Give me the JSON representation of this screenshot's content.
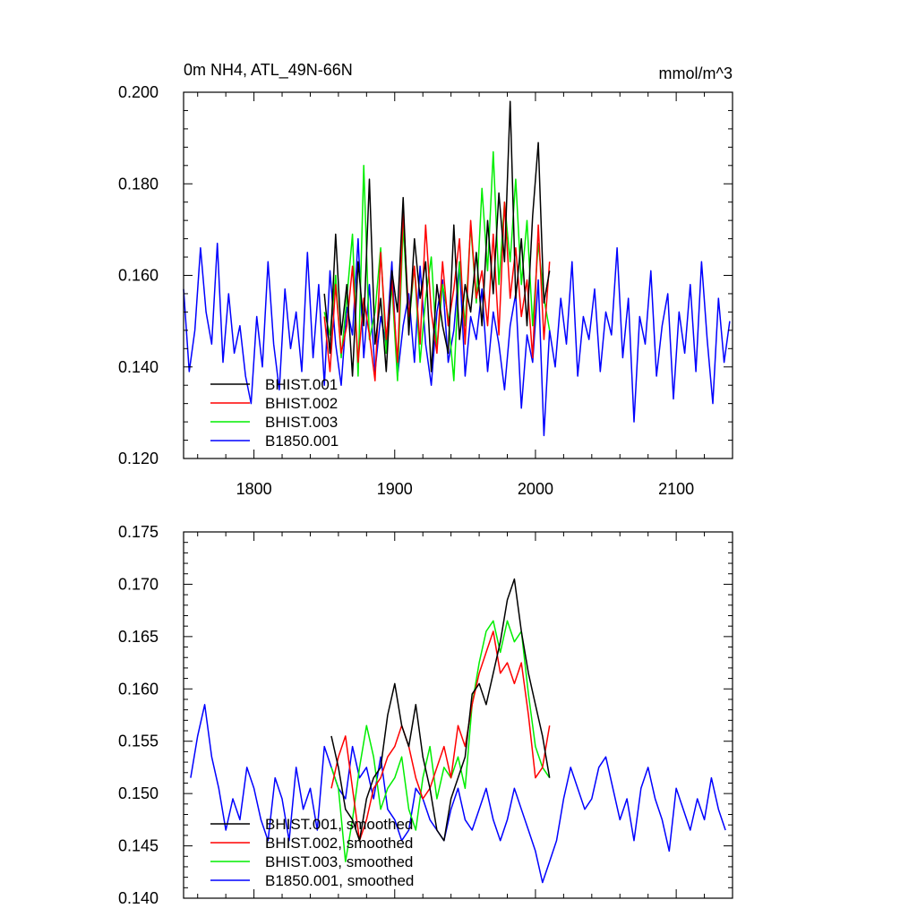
{
  "colors": {
    "BHIST.001": "#000000",
    "BHIST.002": "#ff0000",
    "BHIST.003": "#00ee00",
    "B1850.001": "#0000ff"
  },
  "chart_data": [
    {
      "type": "line",
      "title_left": "0m NH4, ATL_49N-66N",
      "title_right": "mmol/m^3",
      "xlim": [
        1750,
        2140
      ],
      "ylim": [
        0.12,
        0.2
      ],
      "y_ticks": [
        0.12,
        0.14,
        0.16,
        0.18,
        0.2
      ],
      "y_tick_labels": [
        "0.120",
        "0.140",
        "0.160",
        "0.180",
        "0.200"
      ],
      "x_ticks": [
        1800,
        1900,
        2000,
        2100
      ],
      "x_tick_labels": [
        "1800",
        "1900",
        "2000",
        "2100"
      ],
      "legend": [
        "BHIST.001",
        "BHIST.002",
        "BHIST.003",
        "B1850.001"
      ],
      "legend_position": "bottom-left",
      "series": [
        {
          "name": "B1850.001",
          "x": [
            1750,
            1754,
            1758,
            1762,
            1766,
            1770,
            1774,
            1778,
            1782,
            1786,
            1790,
            1794,
            1798,
            1802,
            1806,
            1810,
            1814,
            1818,
            1822,
            1826,
            1830,
            1834,
            1838,
            1842,
            1846,
            1850,
            1854,
            1858,
            1862,
            1866,
            1870,
            1874,
            1878,
            1882,
            1886,
            1890,
            1894,
            1898,
            1902,
            1906,
            1910,
            1914,
            1918,
            1922,
            1926,
            1930,
            1934,
            1938,
            1942,
            1946,
            1950,
            1954,
            1958,
            1962,
            1966,
            1970,
            1974,
            1978,
            1982,
            1986,
            1990,
            1994,
            1998,
            2002,
            2006,
            2010,
            2014,
            2018,
            2022,
            2026,
            2030,
            2034,
            2038,
            2042,
            2046,
            2050,
            2054,
            2058,
            2062,
            2066,
            2070,
            2074,
            2078,
            2082,
            2086,
            2090,
            2094,
            2098,
            2102,
            2106,
            2110,
            2114,
            2118,
            2122,
            2126,
            2130,
            2134,
            2138
          ],
          "y": [
            0.157,
            0.139,
            0.148,
            0.166,
            0.152,
            0.145,
            0.167,
            0.141,
            0.156,
            0.143,
            0.149,
            0.138,
            0.132,
            0.151,
            0.14,
            0.163,
            0.145,
            0.135,
            0.157,
            0.144,
            0.152,
            0.139,
            0.165,
            0.142,
            0.158,
            0.136,
            0.161,
            0.145,
            0.136,
            0.153,
            0.147,
            0.168,
            0.142,
            0.158,
            0.139,
            0.151,
            0.145,
            0.163,
            0.138,
            0.149,
            0.156,
            0.141,
            0.162,
            0.145,
            0.136,
            0.152,
            0.159,
            0.141,
            0.148,
            0.163,
            0.138,
            0.151,
            0.146,
            0.157,
            0.139,
            0.152,
            0.145,
            0.135,
            0.149,
            0.156,
            0.131,
            0.147,
            0.141,
            0.159,
            0.125,
            0.148,
            0.14,
            0.155,
            0.145,
            0.163,
            0.138,
            0.151,
            0.146,
            0.157,
            0.139,
            0.152,
            0.147,
            0.166,
            0.142,
            0.155,
            0.128,
            0.151,
            0.145,
            0.161,
            0.138,
            0.149,
            0.156,
            0.133,
            0.152,
            0.143,
            0.158,
            0.139,
            0.163,
            0.146,
            0.132,
            0.155,
            0.141,
            0.15
          ]
        },
        {
          "name": "BHIST.003",
          "x": [
            1850,
            1854,
            1858,
            1862,
            1866,
            1870,
            1874,
            1878,
            1882,
            1886,
            1890,
            1894,
            1898,
            1902,
            1906,
            1910,
            1914,
            1918,
            1922,
            1926,
            1930,
            1934,
            1938,
            1942,
            1946,
            1950,
            1954,
            1958,
            1962,
            1966,
            1970,
            1974,
            1978,
            1982,
            1986,
            1990,
            1994,
            1998,
            2002,
            2006,
            2010
          ],
          "y": [
            0.152,
            0.147,
            0.16,
            0.142,
            0.155,
            0.169,
            0.138,
            0.184,
            0.146,
            0.152,
            0.166,
            0.143,
            0.158,
            0.137,
            0.171,
            0.149,
            0.162,
            0.141,
            0.155,
            0.164,
            0.144,
            0.158,
            0.151,
            0.137,
            0.163,
            0.149,
            0.171,
            0.154,
            0.179,
            0.161,
            0.187,
            0.158,
            0.176,
            0.163,
            0.181,
            0.158,
            0.172,
            0.149,
            0.167,
            0.155,
            0.148
          ]
        },
        {
          "name": "BHIST.002",
          "x": [
            1850,
            1854,
            1858,
            1862,
            1866,
            1870,
            1874,
            1878,
            1882,
            1886,
            1890,
            1894,
            1898,
            1902,
            1906,
            1910,
            1914,
            1918,
            1922,
            1926,
            1930,
            1934,
            1938,
            1942,
            1946,
            1950,
            1954,
            1958,
            1962,
            1966,
            1970,
            1974,
            1978,
            1982,
            1986,
            1990,
            1994,
            1998,
            2002,
            2006,
            2010
          ],
          "y": [
            0.151,
            0.139,
            0.158,
            0.143,
            0.149,
            0.162,
            0.141,
            0.155,
            0.147,
            0.137,
            0.165,
            0.146,
            0.159,
            0.141,
            0.174,
            0.151,
            0.162,
            0.145,
            0.171,
            0.152,
            0.143,
            0.163,
            0.149,
            0.157,
            0.168,
            0.145,
            0.172,
            0.155,
            0.161,
            0.149,
            0.169,
            0.147,
            0.176,
            0.155,
            0.166,
            0.151,
            0.159,
            0.142,
            0.171,
            0.146,
            0.163
          ]
        },
        {
          "name": "BHIST.001",
          "x": [
            1850,
            1854,
            1858,
            1862,
            1866,
            1870,
            1874,
            1878,
            1882,
            1886,
            1890,
            1894,
            1898,
            1902,
            1906,
            1910,
            1914,
            1918,
            1922,
            1926,
            1930,
            1934,
            1938,
            1942,
            1946,
            1950,
            1954,
            1958,
            1962,
            1966,
            1970,
            1974,
            1978,
            1982,
            1986,
            1990,
            1994,
            1998,
            2002,
            2006,
            2010
          ],
          "y": [
            0.156,
            0.143,
            0.169,
            0.147,
            0.158,
            0.138,
            0.163,
            0.149,
            0.181,
            0.145,
            0.155,
            0.139,
            0.161,
            0.152,
            0.177,
            0.147,
            0.168,
            0.155,
            0.163,
            0.139,
            0.158,
            0.149,
            0.143,
            0.171,
            0.146,
            0.158,
            0.152,
            0.165,
            0.149,
            0.172,
            0.156,
            0.178,
            0.163,
            0.198,
            0.155,
            0.168,
            0.149,
            0.173,
            0.189,
            0.154,
            0.161
          ]
        }
      ]
    },
    {
      "type": "line",
      "xlim": [
        1750,
        2140
      ],
      "ylim": [
        0.14,
        0.175
      ],
      "y_ticks": [
        0.14,
        0.145,
        0.15,
        0.155,
        0.16,
        0.165,
        0.17,
        0.175
      ],
      "y_tick_labels": [
        "0.140",
        "0.145",
        "0.150",
        "0.155",
        "0.160",
        "0.165",
        "0.170",
        "0.175"
      ],
      "x_ticks": [
        1800,
        1900,
        2000,
        2100
      ],
      "legend": [
        "BHIST.001, smoothed",
        "BHIST.002, smoothed",
        "BHIST.003, smoothed",
        "B1850.001, smoothed"
      ],
      "legend_position": "bottom-left",
      "series": [
        {
          "name": "B1850.001, smoothed",
          "x": [
            1755,
            1760,
            1765,
            1770,
            1775,
            1780,
            1785,
            1790,
            1795,
            1800,
            1805,
            1810,
            1815,
            1820,
            1825,
            1830,
            1835,
            1840,
            1845,
            1850,
            1855,
            1860,
            1865,
            1870,
            1875,
            1880,
            1885,
            1890,
            1895,
            1900,
            1905,
            1910,
            1915,
            1920,
            1925,
            1930,
            1935,
            1940,
            1945,
            1950,
            1955,
            1960,
            1965,
            1970,
            1975,
            1980,
            1985,
            1990,
            1995,
            2000,
            2005,
            2010,
            2015,
            2020,
            2025,
            2030,
            2035,
            2040,
            2045,
            2050,
            2055,
            2060,
            2065,
            2070,
            2075,
            2080,
            2085,
            2090,
            2095,
            2100,
            2105,
            2110,
            2115,
            2120,
            2125,
            2130,
            2135
          ],
          "y": [
            0.1515,
            0.1555,
            0.1585,
            0.1535,
            0.1505,
            0.1465,
            0.1495,
            0.1475,
            0.1525,
            0.1505,
            0.1475,
            0.1455,
            0.1515,
            0.1495,
            0.1455,
            0.1525,
            0.1485,
            0.1505,
            0.1465,
            0.1545,
            0.1525,
            0.1505,
            0.1495,
            0.1545,
            0.1515,
            0.1525,
            0.1495,
            0.1535,
            0.1485,
            0.1475,
            0.1455,
            0.1465,
            0.1505,
            0.1495,
            0.1475,
            0.1465,
            0.1455,
            0.1485,
            0.1505,
            0.1475,
            0.1465,
            0.1485,
            0.1505,
            0.1475,
            0.1455,
            0.1475,
            0.1505,
            0.1485,
            0.1465,
            0.1445,
            0.1415,
            0.1435,
            0.1455,
            0.1495,
            0.1525,
            0.1505,
            0.1485,
            0.1495,
            0.1525,
            0.1535,
            0.1505,
            0.1475,
            0.1495,
            0.1455,
            0.1505,
            0.1525,
            0.1495,
            0.1475,
            0.1445,
            0.1505,
            0.1485,
            0.1465,
            0.1495,
            0.1475,
            0.1515,
            0.1485,
            0.1465
          ]
        },
        {
          "name": "BHIST.003, smoothed",
          "x": [
            1855,
            1860,
            1865,
            1870,
            1875,
            1880,
            1885,
            1890,
            1895,
            1900,
            1905,
            1910,
            1915,
            1920,
            1925,
            1930,
            1935,
            1940,
            1945,
            1950,
            1955,
            1960,
            1965,
            1970,
            1975,
            1980,
            1985,
            1990,
            1995,
            2000,
            2005,
            2010
          ],
          "y": [
            0.1525,
            0.1505,
            0.1435,
            0.1475,
            0.1525,
            0.1565,
            0.1535,
            0.1485,
            0.1505,
            0.1515,
            0.1535,
            0.1485,
            0.1465,
            0.1515,
            0.1545,
            0.1495,
            0.1525,
            0.1515,
            0.1535,
            0.1505,
            0.1585,
            0.1625,
            0.1655,
            0.1665,
            0.1635,
            0.1665,
            0.1645,
            0.1655,
            0.1595,
            0.1545,
            0.1525,
            0.1515
          ]
        },
        {
          "name": "BHIST.002, smoothed",
          "x": [
            1855,
            1860,
            1865,
            1870,
            1875,
            1880,
            1885,
            1890,
            1895,
            1900,
            1905,
            1910,
            1915,
            1920,
            1925,
            1930,
            1935,
            1940,
            1945,
            1950,
            1955,
            1960,
            1965,
            1970,
            1975,
            1980,
            1985,
            1990,
            1995,
            2000,
            2005,
            2010
          ],
          "y": [
            0.1505,
            0.1535,
            0.1555,
            0.1505,
            0.1455,
            0.1475,
            0.1505,
            0.1515,
            0.1535,
            0.1545,
            0.1565,
            0.1545,
            0.1515,
            0.1495,
            0.1505,
            0.1525,
            0.1545,
            0.1515,
            0.1565,
            0.1545,
            0.1585,
            0.1615,
            0.1635,
            0.1655,
            0.1615,
            0.1625,
            0.1605,
            0.1625,
            0.1575,
            0.1515,
            0.1525,
            0.1565
          ]
        },
        {
          "name": "BHIST.001, smoothed",
          "x": [
            1855,
            1860,
            1865,
            1870,
            1875,
            1880,
            1885,
            1890,
            1895,
            1900,
            1905,
            1910,
            1915,
            1920,
            1925,
            1930,
            1935,
            1940,
            1945,
            1950,
            1955,
            1960,
            1965,
            1970,
            1975,
            1980,
            1985,
            1990,
            1995,
            2000,
            2005,
            2010
          ],
          "y": [
            0.1555,
            0.1525,
            0.1485,
            0.1475,
            0.1455,
            0.1495,
            0.1515,
            0.1525,
            0.1575,
            0.1605,
            0.1565,
            0.1545,
            0.1585,
            0.1535,
            0.1505,
            0.1465,
            0.1455,
            0.1495,
            0.1515,
            0.1535,
            0.1595,
            0.1605,
            0.1585,
            0.1615,
            0.1645,
            0.1685,
            0.1705,
            0.1655,
            0.1615,
            0.1585,
            0.1555,
            0.1515
          ]
        }
      ]
    }
  ]
}
